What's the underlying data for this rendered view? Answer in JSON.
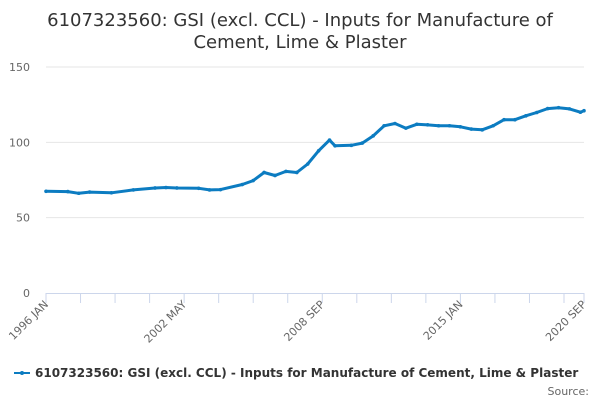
{
  "chart_data": {
    "type": "line",
    "title_lines": [
      "6107323560: GSI (excl. CCL) - Inputs for Manufacture of",
      "Cement, Lime & Plaster"
    ],
    "xlabel": "",
    "ylabel": "",
    "ylim": [
      0,
      150
    ],
    "yticks": [
      0,
      50,
      100,
      150
    ],
    "xrange": [
      "1996-01",
      "2020-09"
    ],
    "xtick_labels": [
      {
        "date": "1996-01",
        "label": "1996 JAN"
      },
      {
        "date": "2002-05",
        "label": "2002 MAY"
      },
      {
        "date": "2008-09",
        "label": "2008 SEP"
      },
      {
        "date": "2015-01",
        "label": "2015 JAN"
      },
      {
        "date": "2020-09",
        "label": "2020 SEP"
      }
    ],
    "grid": true,
    "legend_position": "bottom",
    "series": [
      {
        "name": "6107323560: GSI (excl. CCL) - Inputs for Manufacture of Cement, Lime & Plaster",
        "color": "#0c7cc1",
        "x": [
          "1996-01",
          "1997-01",
          "1997-07",
          "1998-01",
          "1999-01",
          "2000-01",
          "2001-01",
          "2001-07",
          "2002-01",
          "2003-01",
          "2003-07",
          "2004-01",
          "2005-01",
          "2005-07",
          "2006-01",
          "2006-07",
          "2007-01",
          "2007-07",
          "2008-01",
          "2008-07",
          "2009-01",
          "2009-04",
          "2010-01",
          "2010-07",
          "2011-01",
          "2011-07",
          "2012-01",
          "2012-07",
          "2013-01",
          "2013-07",
          "2014-01",
          "2014-07",
          "2015-01",
          "2015-07",
          "2016-01",
          "2016-07",
          "2017-01",
          "2017-07",
          "2018-01",
          "2018-07",
          "2019-01",
          "2019-07",
          "2020-01",
          "2020-07",
          "2020-09"
        ],
        "values": [
          67.5,
          67.3,
          66.2,
          67.0,
          66.5,
          68.4,
          69.7,
          70.0,
          69.7,
          69.5,
          68.4,
          68.6,
          72.0,
          74.6,
          80.0,
          78.0,
          80.7,
          80.0,
          85.6,
          94.4,
          101.5,
          97.7,
          98.0,
          99.5,
          104.3,
          111.0,
          112.5,
          109.4,
          112.0,
          111.6,
          111.0,
          111.0,
          110.3,
          108.8,
          108.3,
          111.0,
          115.0,
          115.0,
          117.6,
          119.8,
          122.4,
          123.0,
          122.2,
          120.0,
          121.0
        ]
      }
    ]
  },
  "source_label": "Source:"
}
